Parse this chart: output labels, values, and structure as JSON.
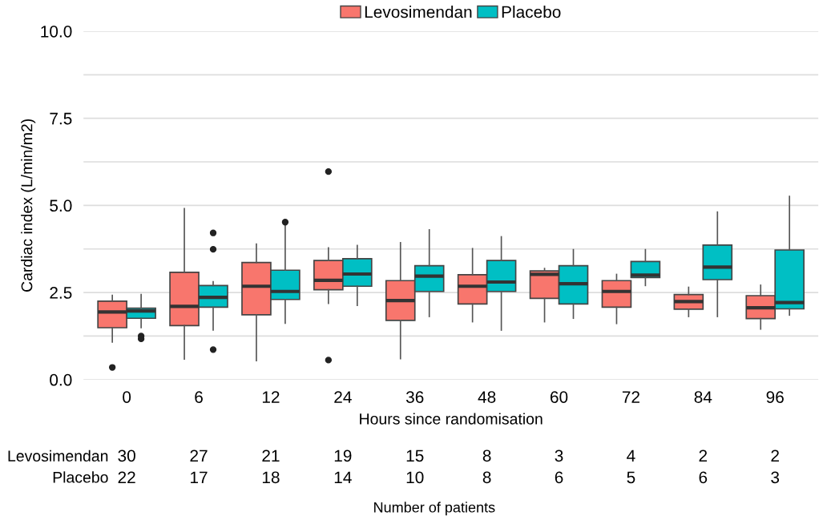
{
  "chart_data": {
    "type": "box",
    "xlabel": "Hours since randomisation",
    "ylabel": "Cardiac index (L/min/m2)",
    "categories": [
      "0",
      "6",
      "12",
      "24",
      "36",
      "48",
      "60",
      "72",
      "84",
      "96"
    ],
    "ylim": [
      0,
      10
    ],
    "yticks": [
      {
        "value": 0,
        "label": "0.0"
      },
      {
        "value": 1.25,
        "label": null
      },
      {
        "value": 2.5,
        "label": "2.5"
      },
      {
        "value": 3.75,
        "label": null
      },
      {
        "value": 5,
        "label": "5.0"
      },
      {
        "value": 6.25,
        "label": null
      },
      {
        "value": 7.5,
        "label": "7.5"
      },
      {
        "value": 8.75,
        "label": null
      },
      {
        "value": 10,
        "label": "10.0"
      }
    ],
    "grid": "y",
    "legend": "top",
    "series": [
      {
        "name": "Levosimendan",
        "color": "#f8766d",
        "boxes": [
          {
            "low": 1.08,
            "q1": 1.49,
            "median": 1.94,
            "q3": 2.25,
            "high": 2.42,
            "outliers": [
              0.35
            ]
          },
          {
            "low": 0.59,
            "q1": 1.55,
            "median": 2.1,
            "q3": 3.08,
            "high": 4.91
          },
          {
            "low": 0.54,
            "q1": 1.86,
            "median": 2.68,
            "q3": 3.36,
            "high": 3.89
          },
          {
            "low": 2.19,
            "q1": 2.58,
            "median": 2.85,
            "q3": 3.42,
            "high": 3.78,
            "outliers": [
              5.97,
              0.56
            ]
          },
          {
            "low": 0.6,
            "q1": 1.7,
            "median": 2.27,
            "q3": 2.84,
            "high": 3.93
          },
          {
            "low": 1.66,
            "q1": 2.17,
            "median": 2.68,
            "q3": 3.01,
            "high": 3.76
          },
          {
            "low": 1.66,
            "q1": 2.33,
            "median": 3.02,
            "q3": 3.12,
            "high": 3.19
          },
          {
            "low": 1.61,
            "q1": 2.08,
            "median": 2.53,
            "q3": 2.84,
            "high": 3.02
          },
          {
            "low": 1.81,
            "q1": 2.02,
            "median": 2.24,
            "q3": 2.44,
            "high": 2.65
          },
          {
            "low": 1.45,
            "q1": 1.75,
            "median": 2.06,
            "q3": 2.41,
            "high": 2.71
          }
        ]
      },
      {
        "name": "Placebo",
        "color": "#00bfc4",
        "boxes": [
          {
            "low": 1.49,
            "q1": 1.76,
            "median": 1.97,
            "q3": 2.05,
            "high": 2.44,
            "outliers": [
              1.25,
              1.17
            ]
          },
          {
            "low": 1.42,
            "q1": 2.08,
            "median": 2.36,
            "q3": 2.7,
            "high": 2.81,
            "outliers": [
              4.21,
              3.74,
              0.86
            ]
          },
          {
            "low": 1.62,
            "q1": 2.3,
            "median": 2.53,
            "q3": 3.14,
            "high": 4.42,
            "outliers": [
              4.52
            ]
          },
          {
            "low": 2.13,
            "q1": 2.68,
            "median": 3.03,
            "q3": 3.47,
            "high": 3.85
          },
          {
            "low": 1.81,
            "q1": 2.53,
            "median": 2.97,
            "q3": 3.27,
            "high": 4.3
          },
          {
            "low": 1.42,
            "q1": 2.53,
            "median": 2.8,
            "q3": 3.42,
            "high": 4.1
          },
          {
            "low": 1.76,
            "q1": 2.17,
            "median": 2.75,
            "q3": 3.27,
            "high": 3.73
          },
          {
            "low": 2.7,
            "q1": 2.93,
            "median": 3.0,
            "q3": 3.39,
            "high": 3.73
          },
          {
            "low": 1.81,
            "q1": 2.87,
            "median": 3.23,
            "q3": 3.86,
            "high": 4.81
          },
          {
            "low": 1.85,
            "q1": 2.03,
            "median": 2.21,
            "q3": 3.72,
            "high": 5.26
          }
        ]
      }
    ],
    "annotations": [
      "Levosimendan\nPlacebo",
      "30\n22",
      "27\n17",
      "21\n18",
      "19\n14",
      "15\n10",
      "8\n8",
      "3\n6",
      "4\n5",
      "2\n6",
      "2\n3",
      "Number of patients"
    ]
  }
}
